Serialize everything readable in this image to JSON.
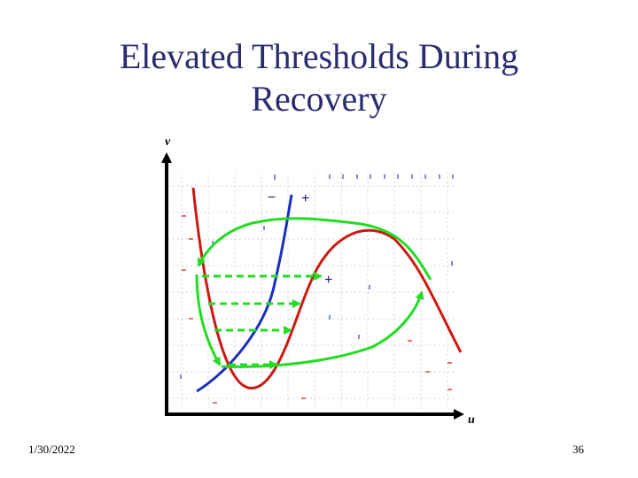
{
  "slide": {
    "title_line1": "Elevated Thresholds During",
    "title_line2": "Recovery",
    "date": "1/30/2022",
    "page_number": "36"
  },
  "diagram": {
    "x_axis_label": "u",
    "y_axis_label": "v",
    "minus_sign": "−",
    "plus_sign_top": "+",
    "plus_sign_mid": "+",
    "colors": {
      "u_nullcline": "#cc1a12",
      "v_nullcline": "#1a2fbd",
      "trajectory": "#22dd22",
      "axis": "#000000",
      "grid": "#cfcfcf"
    }
  }
}
